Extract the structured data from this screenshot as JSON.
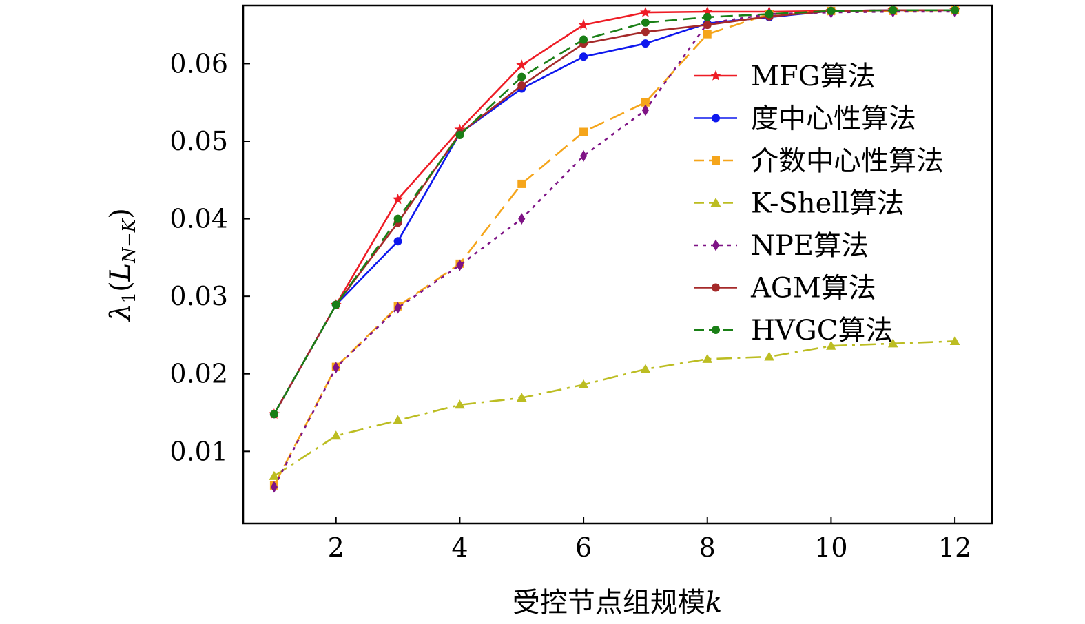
{
  "chart_data": {
    "type": "line",
    "title": "",
    "xlabel": "受控节点组规模k",
    "xlabel_parts": {
      "text": "受控节点组规模",
      "var": "k"
    },
    "ylabel": "λ1(L N−K)",
    "ylabel_parts": {
      "lambda": "λ",
      "sub1": "1",
      "open": "(",
      "L": "L",
      "sub": "N−K",
      "close": ")"
    },
    "xlim": [
      0.5,
      12.6
    ],
    "ylim": [
      0.0007,
      0.0675
    ],
    "xticks": [
      2,
      4,
      6,
      8,
      10,
      12
    ],
    "xtick_labels": [
      "2",
      "4",
      "6",
      "8",
      "10",
      "12"
    ],
    "yticks": [
      0.01,
      0.02,
      0.03,
      0.04,
      0.05,
      0.06
    ],
    "ytick_labels": [
      "0.01",
      "0.02",
      "0.03",
      "0.04",
      "0.05",
      "0.06"
    ],
    "grid": false,
    "legend_position": "top-right",
    "x": [
      1,
      2,
      3,
      4,
      5,
      6,
      7,
      8,
      9,
      10,
      11,
      12
    ],
    "series": [
      {
        "name": "MFG算法",
        "color": "#ee1c25",
        "dash": "solid",
        "marker": "star",
        "values": [
          0.0148,
          0.0289,
          0.0425,
          0.0515,
          0.0598,
          0.065,
          0.0666,
          0.0667,
          0.0667,
          0.0668,
          0.0669,
          0.0669
        ]
      },
      {
        "name": "度中心性算法",
        "color": "#0e18ee",
        "dash": "solid",
        "marker": "circle",
        "values": [
          0.0148,
          0.0289,
          0.0371,
          0.051,
          0.0568,
          0.0609,
          0.0626,
          0.0652,
          0.066,
          0.0668,
          0.0669,
          0.0669
        ]
      },
      {
        "name": "介数中心性算法",
        "color": "#f5a51b",
        "dash": "longdash",
        "marker": "square",
        "values": [
          0.0056,
          0.0209,
          0.0287,
          0.0342,
          0.0445,
          0.0512,
          0.055,
          0.0638,
          0.0664,
          0.0668,
          0.0668,
          0.0669
        ]
      },
      {
        "name": "K-Shell算法",
        "color": "#bcbd22",
        "dash": "dashdot",
        "marker": "triangle",
        "values": [
          0.0068,
          0.012,
          0.014,
          0.016,
          0.0169,
          0.0186,
          0.0206,
          0.0219,
          0.0222,
          0.0236,
          0.0239,
          0.0242
        ]
      },
      {
        "name": "NPE算法",
        "color": "#7e1385",
        "dash": "dotted",
        "marker": "diamond",
        "values": [
          0.0054,
          0.0208,
          0.0285,
          0.034,
          0.04,
          0.0481,
          0.054,
          0.0652,
          0.0664,
          0.0666,
          0.0667,
          0.0667
        ]
      },
      {
        "name": "AGM算法",
        "color": "#a52a2a",
        "dash": "solid",
        "marker": "circle",
        "values": [
          0.0148,
          0.0289,
          0.0395,
          0.051,
          0.0572,
          0.0626,
          0.0641,
          0.065,
          0.0661,
          0.0668,
          0.0669,
          0.0669
        ]
      },
      {
        "name": "HVGC算法",
        "color": "#1a7f16",
        "dash": "dash",
        "marker": "circle",
        "values": [
          0.0148,
          0.0289,
          0.04,
          0.0508,
          0.0583,
          0.0631,
          0.0653,
          0.066,
          0.0664,
          0.0668,
          0.0669,
          0.0669
        ]
      }
    ]
  }
}
